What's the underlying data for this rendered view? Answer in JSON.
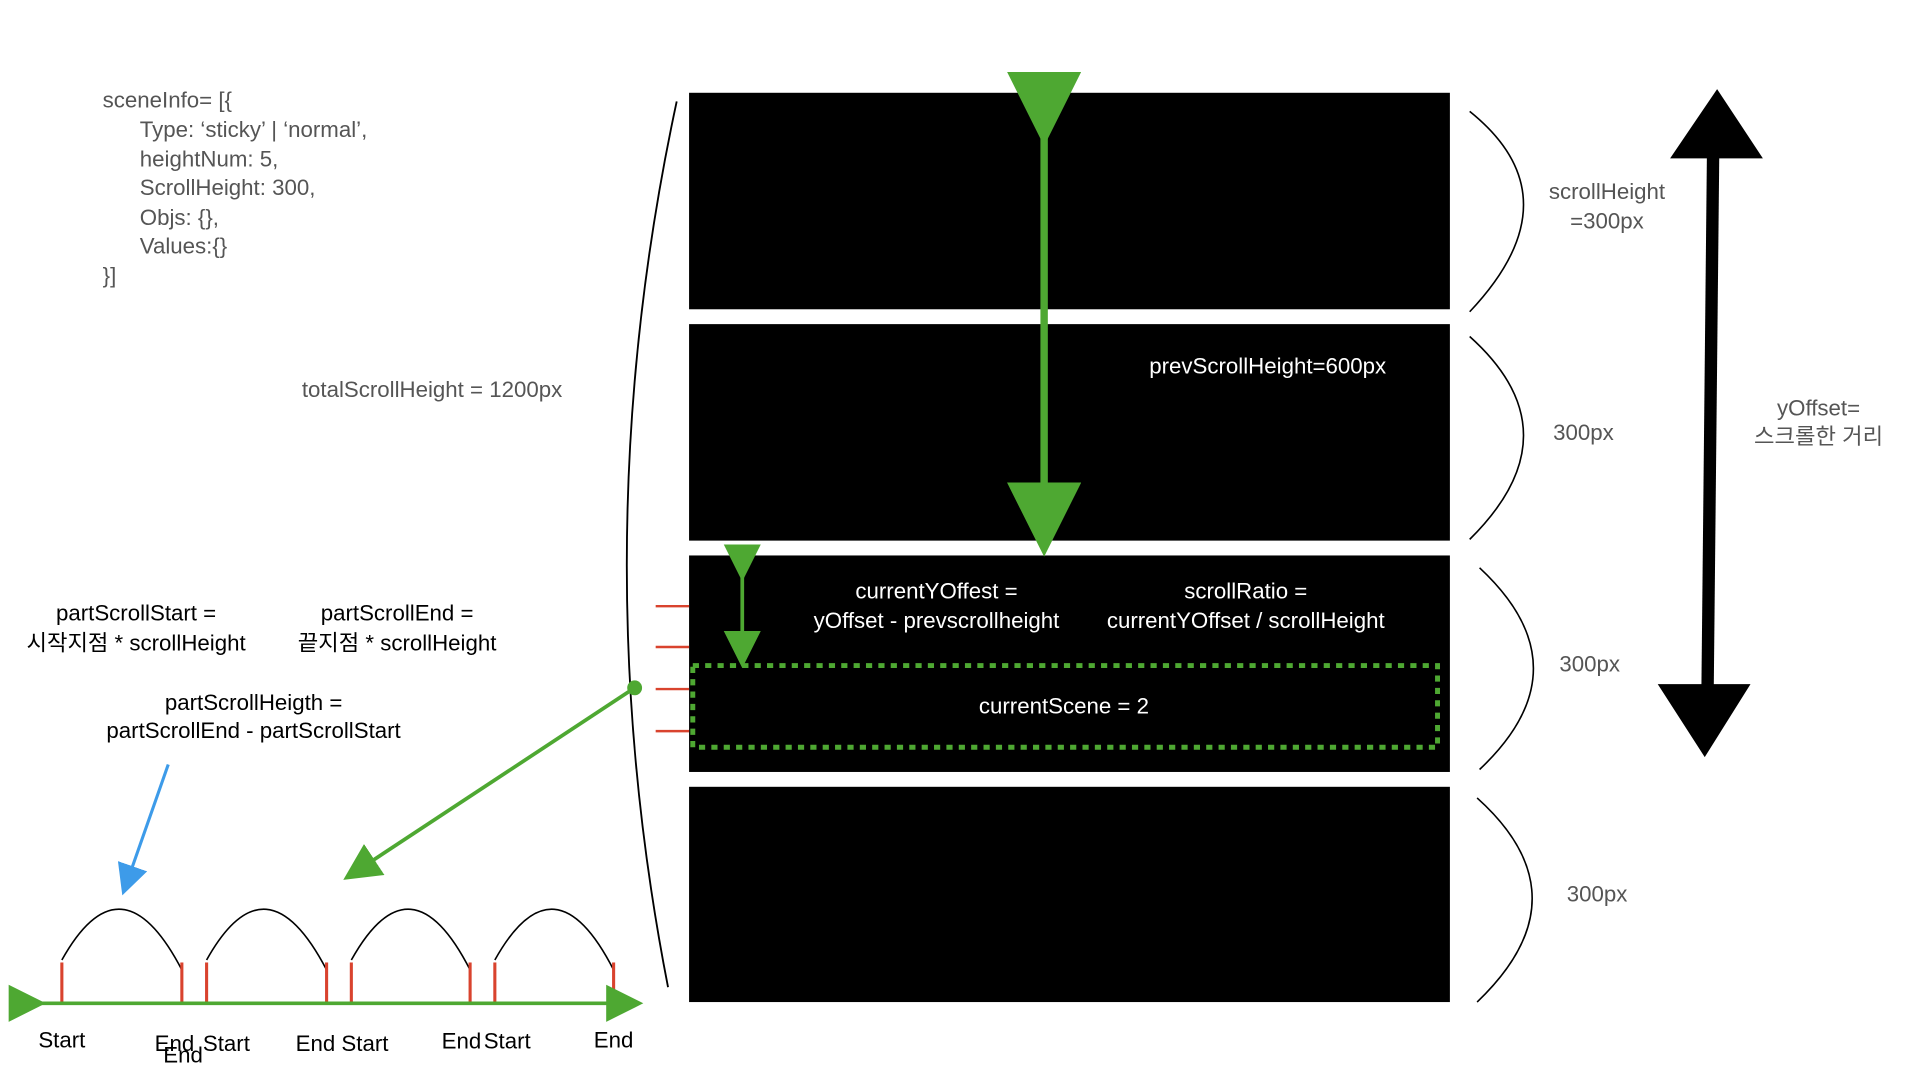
{
  "code": [
    "sceneInfo= [{",
    "Type: ‘sticky’ | ‘normal’,",
    "heightNum: 5,",
    "ScrollHeight: 300,",
    "Objs: {},",
    "Values:{}",
    "}]"
  ],
  "total_label": "totalScrollHeight = 1200px",
  "part_start": [
    "partScrollStart =",
    "시작지점 * scrollHeight"
  ],
  "part_end": [
    "partScrollEnd =",
    "끝지점 * scrollHeight"
  ],
  "part_height": [
    "partScrollHeigth =",
    "partScrollEnd - partScrollStart"
  ],
  "timeline_labels": [
    "Start",
    "End",
    "End",
    "Start",
    "End",
    "Start",
    "End",
    "Start",
    "End"
  ],
  "prev_label": "prevScrollHeight=600px",
  "current_offset": [
    "currentYOffest =",
    "yOffset - prevscrollheight"
  ],
  "scroll_ratio": [
    "scrollRatio =",
    "currentYOffset / scrollHeight"
  ],
  "current_scene": "currentScene = 2",
  "side_labels": [
    [
      "scrollHeight",
      "=300px"
    ],
    [
      "300px"
    ],
    [
      "300px"
    ],
    [
      "300px"
    ]
  ],
  "y_offset": [
    "yOffset=",
    "스크롤한 거리"
  ]
}
